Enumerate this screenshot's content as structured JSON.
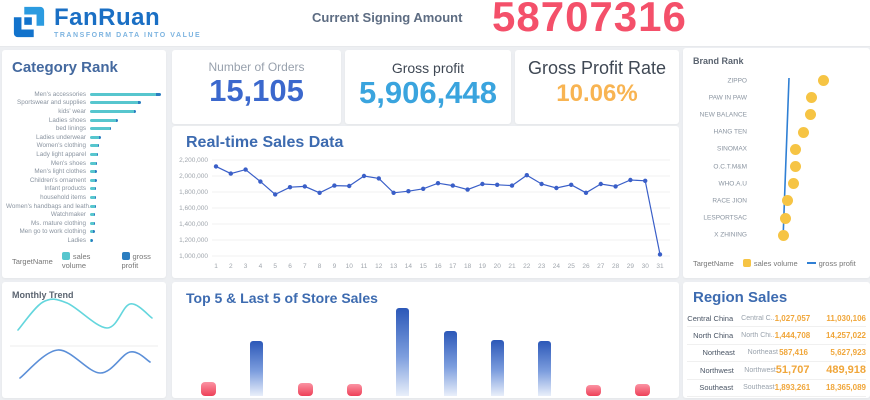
{
  "header": {
    "logo_text": "FanRuan",
    "logo_tagline": "TRANSFORM DATA INTO VALUE",
    "signing_label": "Current Signing Amount",
    "signing_value": "58707316",
    "signing_color": "#f4506a"
  },
  "kpis": [
    {
      "label": "Number of Orders",
      "value": "15,105",
      "color": "#3b68cd"
    },
    {
      "label": "Gross profit",
      "value": "5,906,448",
      "color": "#3aa4de"
    },
    {
      "label": "Gross Profit Rate",
      "value": "10.06%",
      "color": "#f8b452"
    }
  ],
  "chart_data": [
    {
      "id": "category-rank",
      "type": "bar",
      "orientation": "horizontal",
      "title": "Category Rank",
      "legend_name": "TargetName",
      "categories": [
        "Men's accessories",
        "Sportswear and supplies",
        "kids' wear",
        "Ladies shoes",
        "bed linings",
        "Ladies underwear",
        "Women's clothing",
        "Lady light apparel",
        "Men's shoes",
        "Men's light clothes",
        "Children's ornament",
        "Infant products",
        "household items",
        "Women's handbags and leath..",
        "Watchmaker",
        "Ms. mature clothing",
        "Men go to work clothing",
        "Ladies"
      ],
      "series": [
        {
          "name": "sales volume",
          "color": "#57c6ce",
          "values": [
            100,
            73,
            66,
            40,
            30,
            14,
            12,
            10,
            9,
            8,
            8,
            7,
            7,
            7,
            6,
            6,
            5,
            2
          ]
        },
        {
          "name": "gross profit",
          "color": "#2b7dc0",
          "values": [
            8,
            5,
            4,
            2.5,
            2,
            2,
            2,
            1.5,
            1.5,
            1.5,
            1.5,
            1.2,
            1.2,
            1.2,
            1,
            1,
            1,
            0.5
          ]
        }
      ],
      "value_scale": "relative-max-100",
      "axis_labels_visible": false
    },
    {
      "id": "realtime-sales",
      "type": "line",
      "title": "Real-time Sales Data",
      "x": [
        1,
        2,
        3,
        4,
        5,
        6,
        7,
        8,
        9,
        10,
        11,
        12,
        13,
        14,
        15,
        16,
        17,
        18,
        19,
        20,
        21,
        22,
        23,
        24,
        25,
        26,
        27,
        28,
        29,
        30,
        31
      ],
      "series": [
        {
          "name": "sales",
          "color": "#3a5fc8",
          "values": [
            2120000,
            2030000,
            2080000,
            1930000,
            1770000,
            1860000,
            1870000,
            1790000,
            1880000,
            1875000,
            2000000,
            1970000,
            1790000,
            1810000,
            1840000,
            1910000,
            1880000,
            1830000,
            1900000,
            1890000,
            1880000,
            2010000,
            1900000,
            1850000,
            1890000,
            1790000,
            1900000,
            1870000,
            1950000,
            1940000,
            1020000
          ]
        }
      ],
      "ylim": [
        1000000,
        2200000
      ],
      "yticks": [
        "2,200,000",
        "2,000,000",
        "1,800,000",
        "1,600,000",
        "1,400,000",
        "1,200,000",
        "1,000,000"
      ],
      "grid": true,
      "legend_position": "none"
    },
    {
      "id": "brand-rank",
      "type": "scatter",
      "title": "Brand Rank",
      "legend_name": "TargetName",
      "categories": [
        "ZIPPO",
        "PAW IN PAW",
        "NEW BALANCE",
        "HANG TEN",
        "SINOMAX",
        "O.C.T.M&M",
        "WHO.A.U",
        "RACE JION",
        "LESPORTSAC",
        "X ZHINING"
      ],
      "series": [
        {
          "name": "sales volume",
          "color": "#f6c444",
          "values": [
            100,
            86,
            84,
            75,
            66,
            65,
            63,
            56,
            53,
            51
          ]
        },
        {
          "name": "gross profit",
          "color": "#2f7fd4",
          "values": [
            58,
            57,
            56,
            55,
            54,
            54,
            53,
            53,
            52,
            51
          ]
        }
      ],
      "value_scale": "relative-max-100",
      "axis_labels_visible": false
    },
    {
      "id": "monthly-trend",
      "type": "line",
      "title": "Monthly Trend",
      "series": [
        {
          "name": "trend-top",
          "color": "#64d6dd",
          "points": [
            [
              16,
              48
            ],
            [
              41,
              20
            ],
            [
              65,
              21
            ],
            [
              105,
              46
            ],
            [
              128,
              22
            ],
            [
              150,
              36
            ]
          ]
        },
        {
          "name": "trend-bottom",
          "color": "#5b8fd8",
          "points": [
            [
              18,
              96
            ],
            [
              56,
              68
            ],
            [
              98,
              91
            ],
            [
              128,
              70
            ],
            [
              148,
              80
            ]
          ]
        }
      ],
      "divider_y": 64,
      "value_scale": "panel-relative-px",
      "axis_labels_visible": false
    },
    {
      "id": "store-sales",
      "type": "bar",
      "title": "Top 5 & Last 5 of Store Sales",
      "series": [
        {
          "name": "store sales",
          "values": [
            16,
            62,
            15,
            14,
            100,
            74,
            64,
            62,
            13,
            14
          ]
        }
      ],
      "bar_groups": [
        "last5",
        "top5",
        "last5",
        "last5",
        "top5",
        "top5",
        "top5",
        "top5",
        "last5",
        "last5"
      ],
      "colors": {
        "top5": "#2c58b8",
        "last5": "#ee4058"
      },
      "value_scale": "relative-max-100",
      "axis_labels_visible": false
    },
    {
      "id": "region-sales",
      "type": "table",
      "title": "Region Sales",
      "rows": [
        {
          "region": "Central China",
          "region_short": "Central C..",
          "sales": "1,027,057",
          "amount": "11,030,106",
          "emphasis": false
        },
        {
          "region": "North China",
          "region_short": "North Chi..",
          "sales": "1,444,708",
          "amount": "14,257,022",
          "emphasis": false
        },
        {
          "region": "Northeast",
          "region_short": "Northeast",
          "sales": "587,416",
          "amount": "5,627,923",
          "emphasis": false
        },
        {
          "region": "Northwest",
          "region_short": "Northwest",
          "sales": "51,707",
          "amount": "489,918",
          "emphasis": true
        },
        {
          "region": "Southeast",
          "region_short": "Southeast",
          "sales": "1,893,261",
          "amount": "18,365,089",
          "emphasis": false
        }
      ],
      "value_color": "#f0a63a"
    }
  ]
}
